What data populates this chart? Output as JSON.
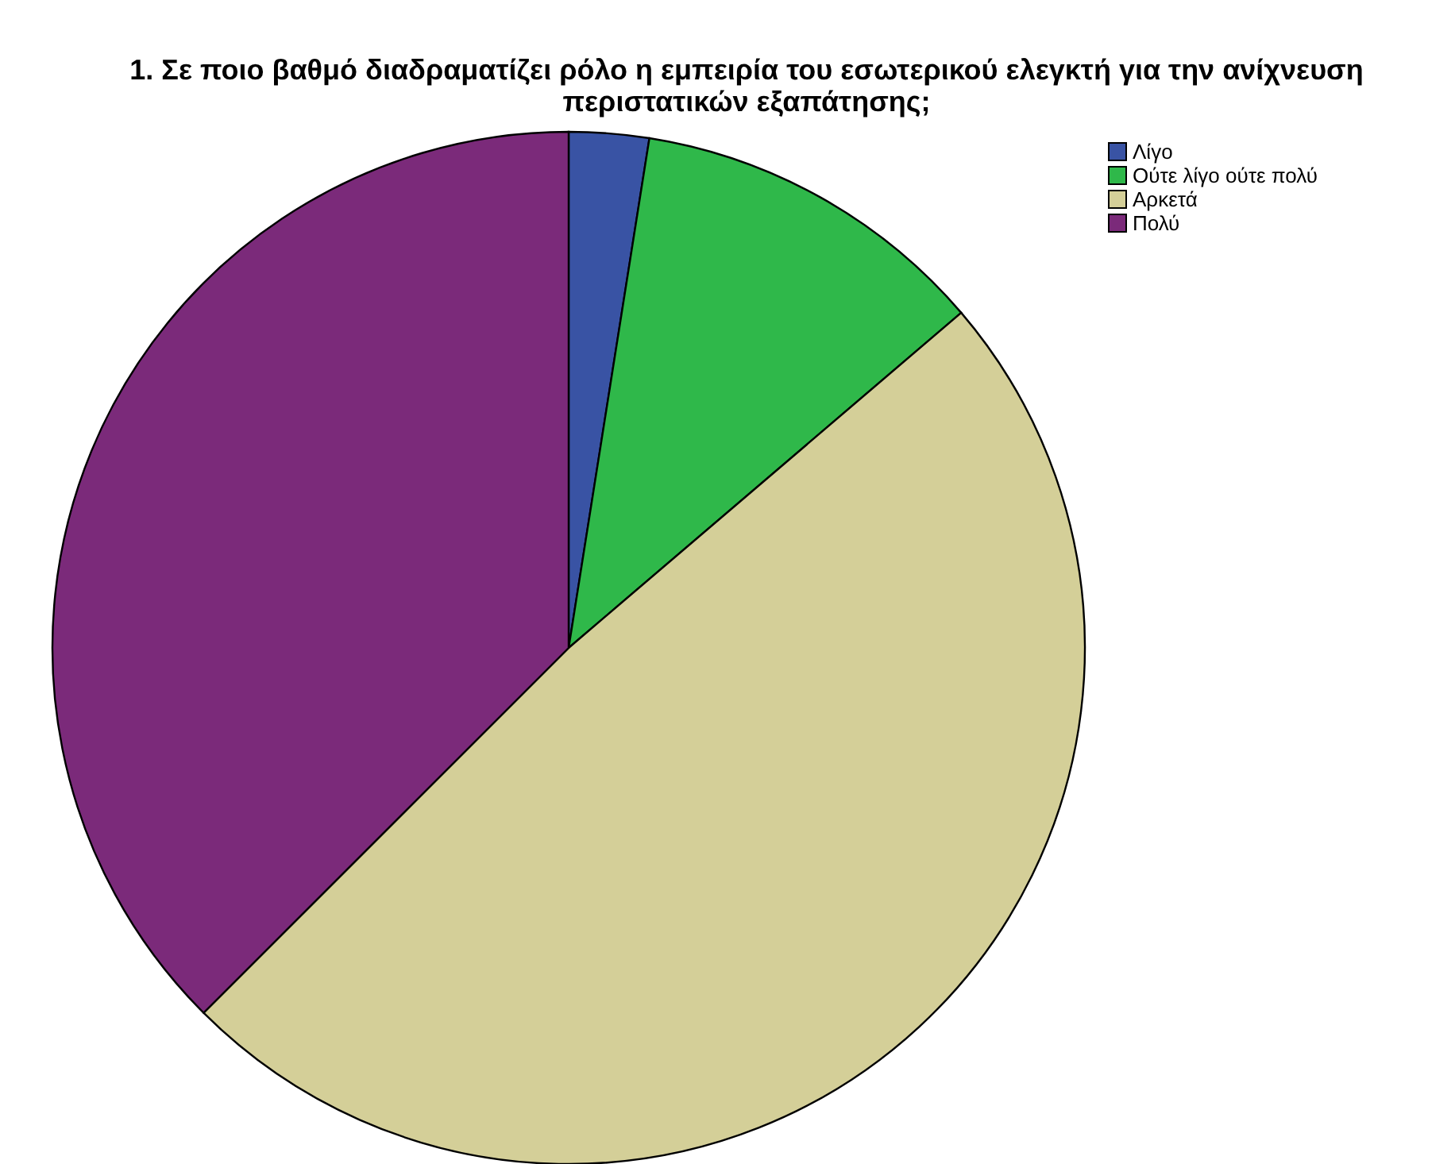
{
  "chart_data": {
    "type": "pie",
    "title": "1. Σε ποιο βαθμό διαδραματίζει ρόλο η εμπειρία του εσωτερικού ελεγκτή για την ανίχνευση περιστατικών εξαπάτησης;",
    "categories": [
      "Λίγο",
      "Ούτε λίγο ούτε πολύ",
      "Αρκετά",
      "Πολύ"
    ],
    "values": [
      2.5,
      11.25,
      48.75,
      37.5
    ],
    "colors": [
      "#3953a4",
      "#2fb84a",
      "#d4cf98",
      "#7b2a7a"
    ],
    "legend": "top right"
  }
}
